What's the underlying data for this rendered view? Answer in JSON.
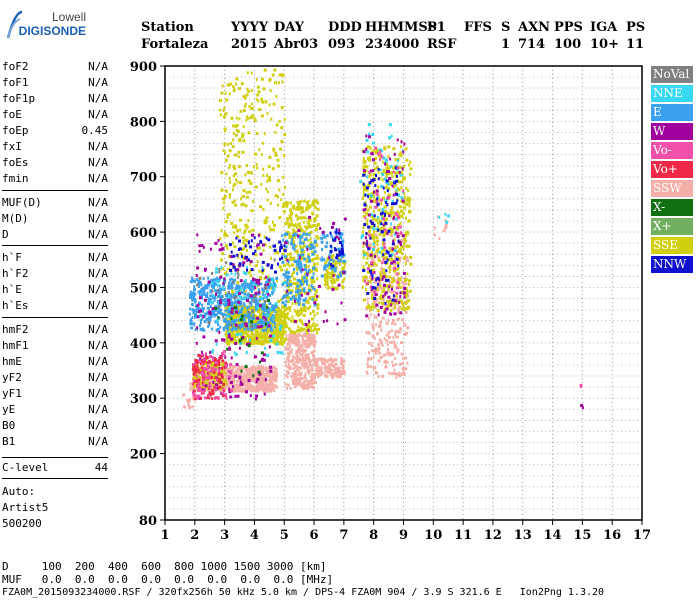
{
  "logo": {
    "line1": "Lowell",
    "line2": "DIGISONDE"
  },
  "header": {
    "labels": [
      "Station",
      "YYYY",
      "DAY",
      "DDD",
      "HHMMSS",
      "P1",
      "FFS",
      "S",
      "AXN",
      "PPS",
      "IGA",
      "PS"
    ],
    "values": [
      "Fortaleza",
      "2015",
      "Abr03",
      "093",
      "234000",
      "RSF",
      "1",
      "714",
      "100",
      "10+",
      "11"
    ]
  },
  "params": {
    "group1": [
      {
        "name": "foF2",
        "value": "N/A"
      },
      {
        "name": "foF1",
        "value": "N/A"
      },
      {
        "name": "foF1p",
        "value": "N/A"
      },
      {
        "name": "foE",
        "value": "N/A"
      },
      {
        "name": "foEp",
        "value": "0.45"
      },
      {
        "name": "fxI",
        "value": "N/A"
      },
      {
        "name": "foEs",
        "value": "N/A"
      },
      {
        "name": "fmin",
        "value": "N/A"
      }
    ],
    "group2": [
      {
        "name": "MUF(D)",
        "value": "N/A"
      },
      {
        "name": "M(D)",
        "value": "N/A"
      },
      {
        "name": "D",
        "value": "N/A"
      }
    ],
    "group3": [
      {
        "name": "h`F",
        "value": "N/A"
      },
      {
        "name": "h`F2",
        "value": "N/A"
      },
      {
        "name": "h`E",
        "value": "N/A"
      },
      {
        "name": "h`Es",
        "value": "N/A"
      }
    ],
    "group4": [
      {
        "name": "hmF2",
        "value": "N/A"
      },
      {
        "name": "hmF1",
        "value": "N/A"
      },
      {
        "name": "hmE",
        "value": "N/A"
      },
      {
        "name": "yF2",
        "value": "N/A"
      },
      {
        "name": "yF1",
        "value": "N/A"
      },
      {
        "name": "yE",
        "value": "N/A"
      },
      {
        "name": "B0",
        "value": "N/A"
      },
      {
        "name": "B1",
        "value": "N/A"
      }
    ],
    "clevel": {
      "name": "C-level",
      "value": "44"
    },
    "auto": [
      "Auto:",
      "Artist5",
      "500200"
    ]
  },
  "legend": [
    {
      "label": "NoVal",
      "color": "#808080"
    },
    {
      "label": "NNE",
      "color": "#38d8f0"
    },
    {
      "label": "E",
      "color": "#3aa0f0"
    },
    {
      "label": "W",
      "color": "#a0009c"
    },
    {
      "label": "Vo-",
      "color": "#f050a8"
    },
    {
      "label": "Vo+",
      "color": "#f02848"
    },
    {
      "label": "SSW",
      "color": "#f4b0a8"
    },
    {
      "label": "X-",
      "color": "#107010"
    },
    {
      "label": "X+",
      "color": "#70b060"
    },
    {
      "label": "SSE",
      "color": "#d0d010"
    },
    {
      "label": "NNW",
      "color": "#1010d0"
    }
  ],
  "footer": {
    "d_line": "D     100  200  400  600  800 1000 1500 3000 [km]",
    "muf_line": "MUF   0.0  0.0  0.0  0.0  0.0  0.0  0.0  0.0 [MHz]",
    "file_line": "FZA0M_2015093234000.RSF / 320fx256h 50 kHz 5.0 km / DPS-4 FZA0M 904 / 3.9 S 321.6 E   Ion2Png 1.3.20"
  },
  "chart_data": {
    "type": "scatter",
    "xlabel": "",
    "ylabel": "",
    "xlim": [
      1,
      17
    ],
    "ylim": [
      80,
      900
    ],
    "xticks": [
      "1",
      "2",
      "3",
      "4",
      "5",
      "6",
      "7",
      "8",
      "9",
      "10",
      "11",
      "12",
      "13",
      "14",
      "15",
      "16",
      "17"
    ],
    "yticks": [
      "80",
      "200",
      "300",
      "400",
      "500",
      "600",
      "700",
      "800",
      "900"
    ],
    "grid": true,
    "clusters": [
      {
        "series": "SSW",
        "x": [
          1.9,
          4.7
        ],
        "y": [
          315,
          360
        ],
        "count": 700
      },
      {
        "series": "SSW",
        "x": [
          5.0,
          6.0
        ],
        "y": [
          320,
          420
        ],
        "count": 300
      },
      {
        "series": "SSW",
        "x": [
          6.0,
          7.0
        ],
        "y": [
          340,
          375
        ],
        "count": 120
      },
      {
        "series": "SSW",
        "x": [
          7.7,
          9.1
        ],
        "y": [
          340,
          600
        ],
        "count": 260
      },
      {
        "series": "SSE",
        "x": [
          3.0,
          5.0
        ],
        "y": [
          400,
          470
        ],
        "count": 700
      },
      {
        "series": "SSE",
        "x": [
          2.8,
          5.0
        ],
        "y": [
          470,
          900
        ],
        "count": 350
      },
      {
        "series": "SSE",
        "x": [
          5.0,
          6.1
        ],
        "y": [
          420,
          660
        ],
        "count": 380
      },
      {
        "series": "SSE",
        "x": [
          6.3,
          7.0
        ],
        "y": [
          500,
          560
        ],
        "count": 100
      },
      {
        "series": "SSE",
        "x": [
          7.6,
          9.2
        ],
        "y": [
          460,
          760
        ],
        "count": 450
      },
      {
        "series": "SSE",
        "x": [
          1.9,
          3.0
        ],
        "y": [
          320,
          370
        ],
        "count": 150
      },
      {
        "series": "E",
        "x": [
          1.8,
          4.7
        ],
        "y": [
          425,
          520
        ],
        "count": 500
      },
      {
        "series": "E",
        "x": [
          4.9,
          6.0
        ],
        "y": [
          470,
          600
        ],
        "count": 150
      },
      {
        "series": "E",
        "x": [
          6.2,
          7.0
        ],
        "y": [
          520,
          600
        ],
        "count": 60
      },
      {
        "series": "NNE",
        "x": [
          7.5,
          9.0
        ],
        "y": [
          560,
          800
        ],
        "count": 60
      },
      {
        "series": "NNE",
        "x": [
          2.5,
          5.0
        ],
        "y": [
          380,
          540
        ],
        "count": 70
      },
      {
        "series": "W",
        "x": [
          2.0,
          4.5
        ],
        "y": [
          300,
          600
        ],
        "count": 160
      },
      {
        "series": "W",
        "x": [
          7.6,
          9.0
        ],
        "y": [
          450,
          780
        ],
        "count": 90
      },
      {
        "series": "W",
        "x": [
          5.0,
          7.0
        ],
        "y": [
          420,
          640
        ],
        "count": 40
      },
      {
        "series": "Vo+",
        "x": [
          1.9,
          3.0
        ],
        "y": [
          300,
          380
        ],
        "count": 110
      },
      {
        "series": "Vo-",
        "x": [
          1.9,
          3.2
        ],
        "y": [
          300,
          390
        ],
        "count": 70
      },
      {
        "series": "Vo-",
        "x": [
          7.6,
          9.0
        ],
        "y": [
          480,
          760
        ],
        "count": 50
      },
      {
        "series": "NNW",
        "x": [
          6.5,
          7.0
        ],
        "y": [
          540,
          620
        ],
        "count": 25
      },
      {
        "series": "NNW",
        "x": [
          7.6,
          8.8
        ],
        "y": [
          470,
          720
        ],
        "count": 80
      },
      {
        "series": "NNW",
        "x": [
          3.0,
          5.0
        ],
        "y": [
          530,
          600
        ],
        "count": 50
      },
      {
        "series": "NoVal",
        "x": [
          2.0,
          4.7
        ],
        "y": [
          430,
          560
        ],
        "count": 30
      },
      {
        "series": "X-",
        "x": [
          2.5,
          4.5
        ],
        "y": [
          330,
          480
        ],
        "count": 20
      },
      {
        "series": "SSW",
        "x": [
          10.0,
          10.5
        ],
        "y": [
          590,
          640
        ],
        "count": 8
      },
      {
        "series": "NNE",
        "x": [
          10.0,
          10.5
        ],
        "y": [
          620,
          640
        ],
        "count": 4
      },
      {
        "series": "Vo-",
        "x": [
          14.9,
          15.0
        ],
        "y": [
          320,
          330
        ],
        "count": 2
      },
      {
        "series": "W",
        "x": [
          14.9,
          15.0
        ],
        "y": [
          285,
          295
        ],
        "count": 2
      },
      {
        "series": "SSW",
        "x": [
          1.5,
          1.9
        ],
        "y": [
          280,
          330
        ],
        "count": 15
      }
    ]
  }
}
